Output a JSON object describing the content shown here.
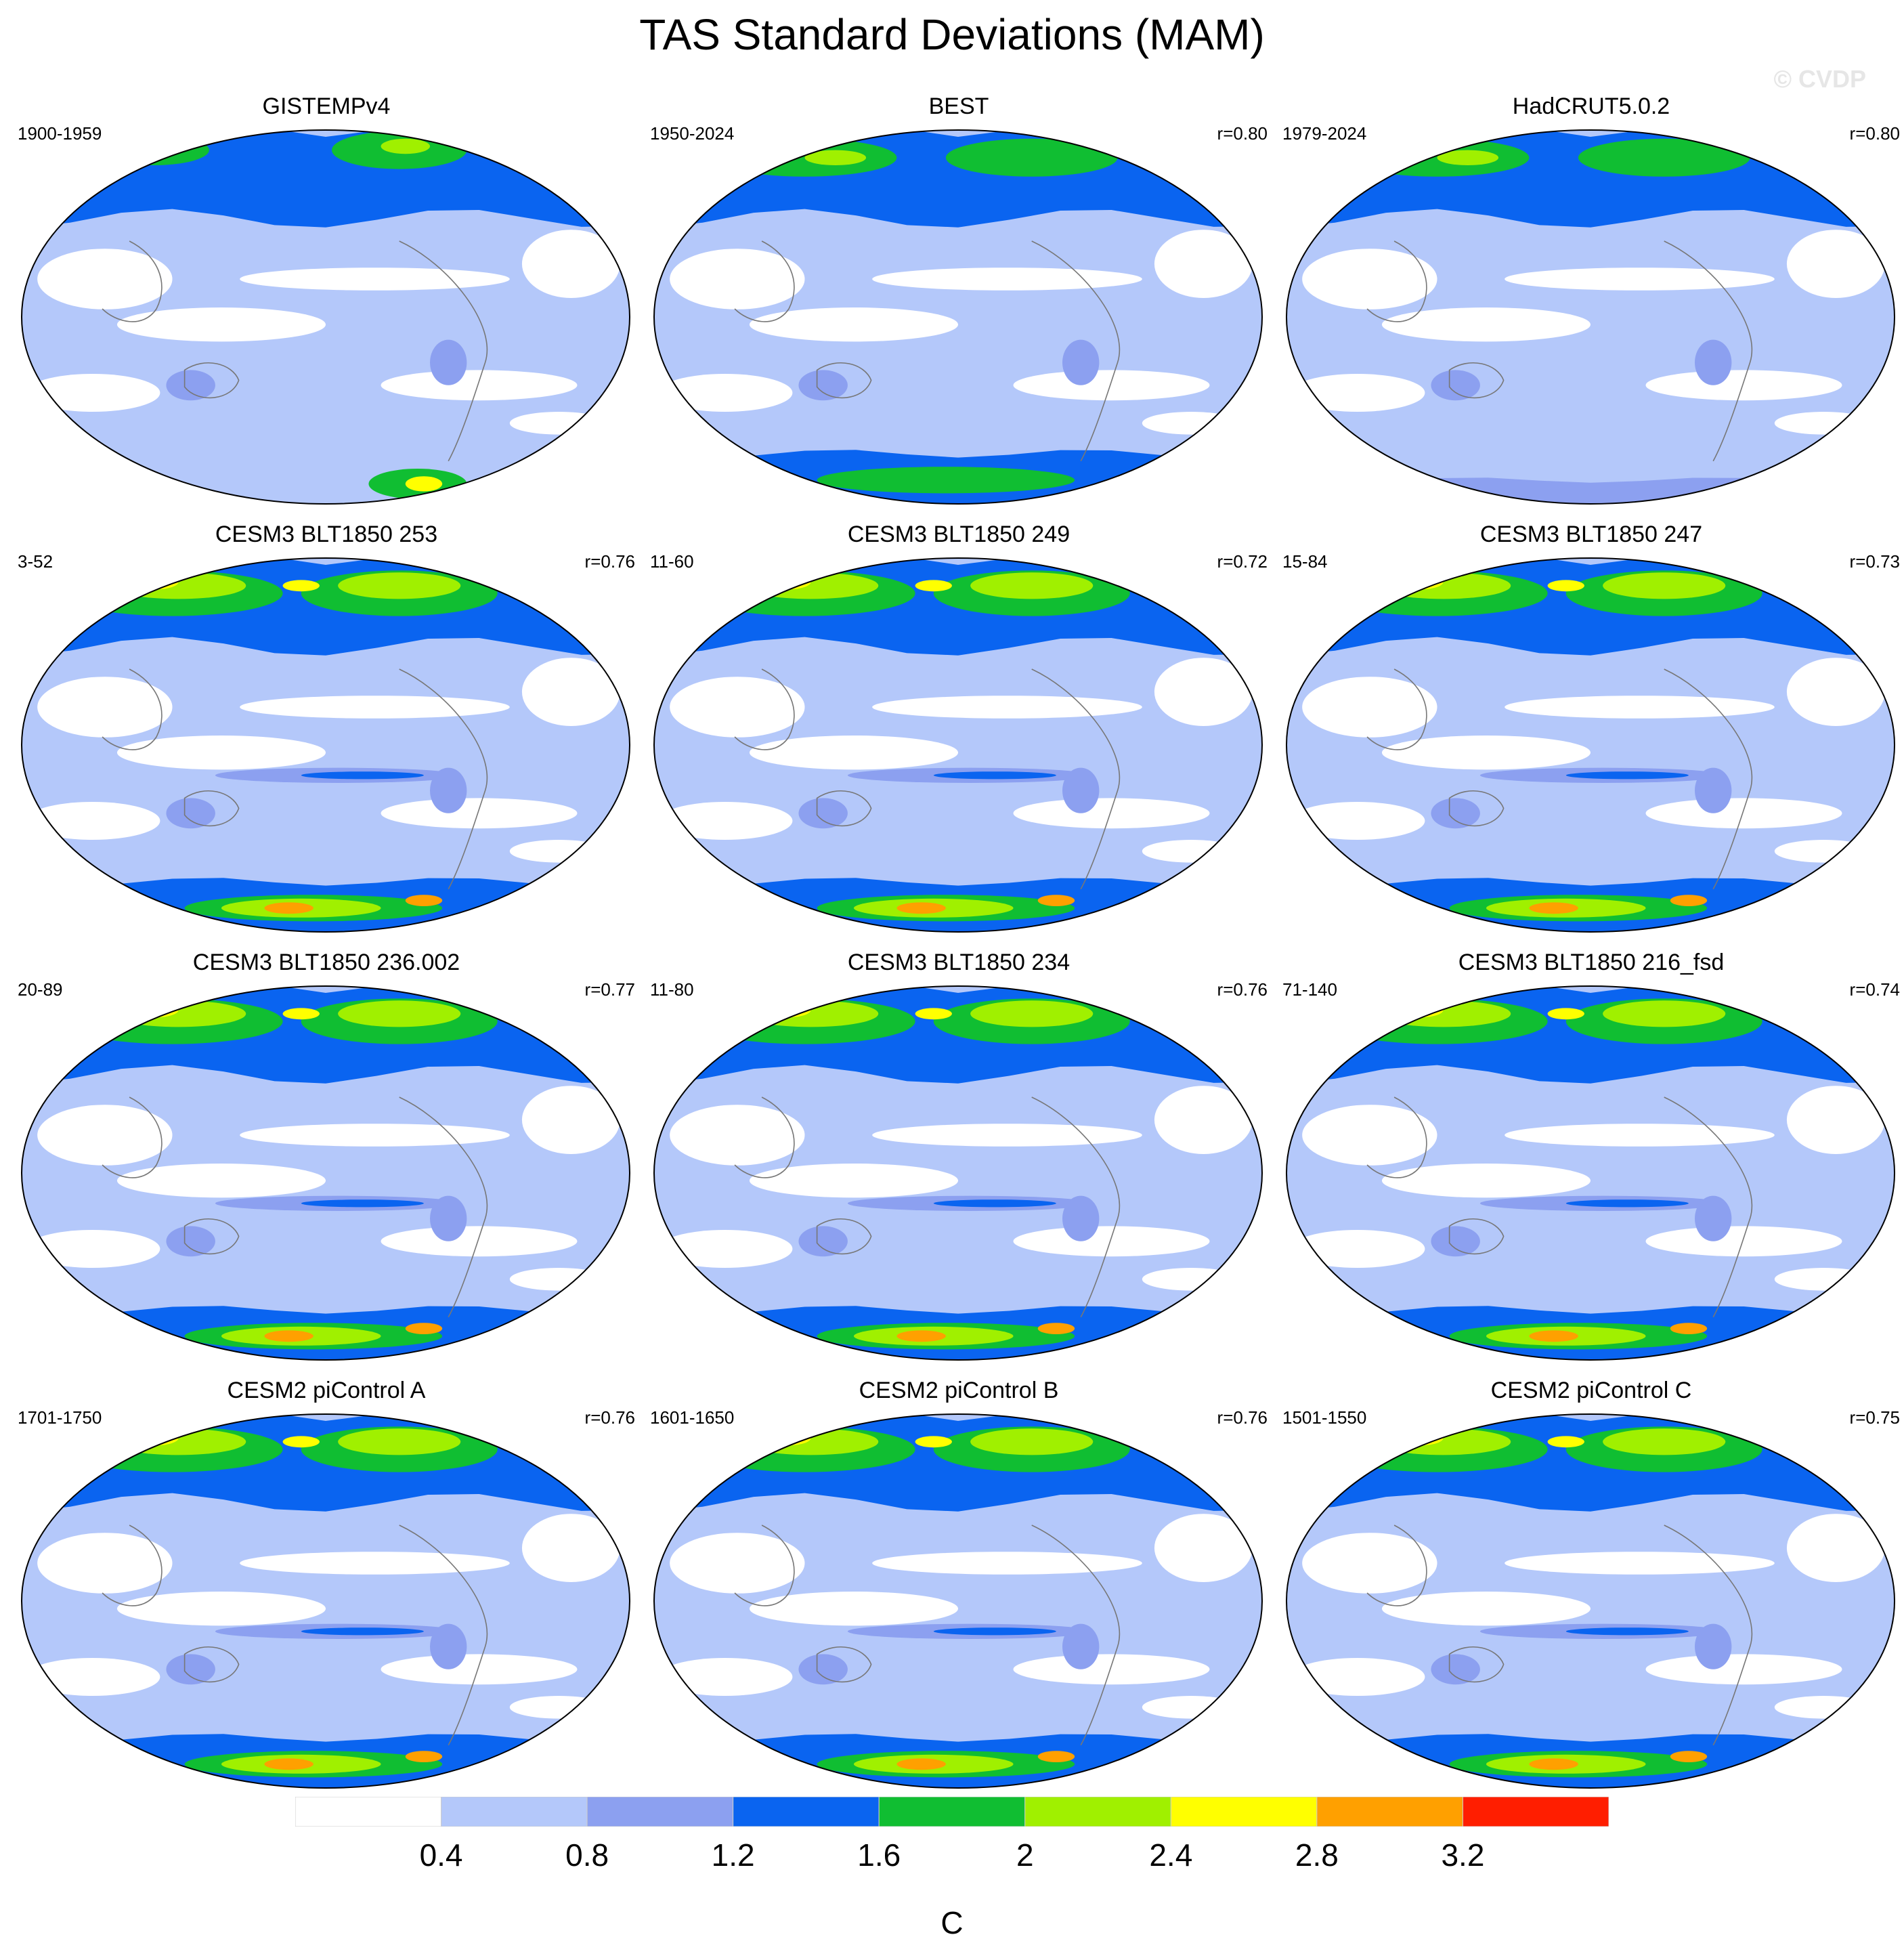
{
  "title": "TAS Standard Deviations (MAM)",
  "watermark": "© CVDP",
  "colors": {
    "levels": [
      "#ffffff",
      "#b4c8fa",
      "#8ca0f0",
      "#0a64f0",
      "#10be32",
      "#a0f000",
      "#ffff00",
      "#ffa000",
      "#ff1e00"
    ],
    "coast": "#777777"
  },
  "panels": [
    {
      "title": "GISTEMPv4",
      "years": "1900-1959",
      "r": "",
      "pattern": "obs"
    },
    {
      "title": "BEST",
      "years": "1950-2024",
      "r": "r=0.80",
      "pattern": "obs2"
    },
    {
      "title": "HadCRUT5.0.2",
      "years": "1979-2024",
      "r": "r=0.80",
      "pattern": "obs3"
    },
    {
      "title": "CESM3 BLT1850 253",
      "years": "3-52",
      "r": "r=0.76",
      "pattern": "model"
    },
    {
      "title": "CESM3 BLT1850 249",
      "years": "11-60",
      "r": "r=0.72",
      "pattern": "model"
    },
    {
      "title": "CESM3 BLT1850 247",
      "years": "15-84",
      "r": "r=0.73",
      "pattern": "model"
    },
    {
      "title": "CESM3 BLT1850 236.002",
      "years": "20-89",
      "r": "r=0.77",
      "pattern": "model"
    },
    {
      "title": "CESM3 BLT1850 234",
      "years": "11-80",
      "r": "r=0.76",
      "pattern": "model"
    },
    {
      "title": "CESM3 BLT1850 216_fsd",
      "years": "71-140",
      "r": "r=0.74",
      "pattern": "model"
    },
    {
      "title": "CESM2 piControl A",
      "years": "1701-1750",
      "r": "r=0.76",
      "pattern": "model2"
    },
    {
      "title": "CESM2 piControl B",
      "years": "1601-1650",
      "r": "r=0.76",
      "pattern": "model2"
    },
    {
      "title": "CESM2 piControl C",
      "years": "1501-1550",
      "r": "r=0.75",
      "pattern": "model2"
    }
  ],
  "colorbar": {
    "ticks": [
      "0.4",
      "0.8",
      "1.2",
      "1.6",
      "2",
      "2.4",
      "2.8",
      "3.2"
    ],
    "unit": "C"
  }
}
